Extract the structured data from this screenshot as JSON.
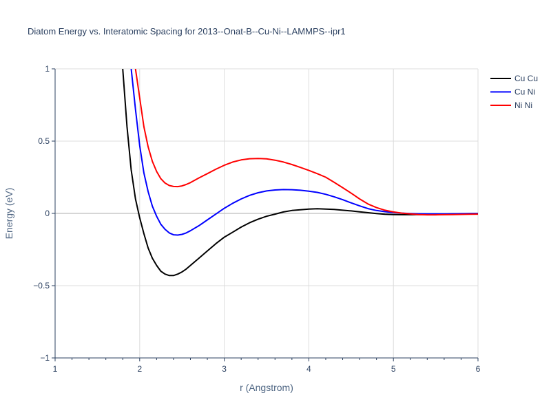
{
  "chart_data": {
    "type": "line",
    "title": "Diatom Energy vs. Interatomic Spacing for 2013--Onat-B--Cu-Ni--LAMMPS--ipr1",
    "xlabel": "r (Angstrom)",
    "ylabel": "Energy (eV)",
    "xlim": [
      1,
      6
    ],
    "ylim": [
      -1,
      1
    ],
    "xticks": [
      1,
      2,
      3,
      4,
      5,
      6
    ],
    "xtick_labels": [
      "1",
      "2",
      "3",
      "4",
      "5",
      "6"
    ],
    "yticks": [
      -1,
      -0.5,
      0,
      0.5,
      1
    ],
    "ytick_labels": [
      "−1",
      "−0.5",
      "0",
      "0.5",
      "1"
    ],
    "grid": true,
    "legend_position": "top-right",
    "series": [
      {
        "name": "Cu Cu",
        "color": "#000000",
        "x": [
          1.8,
          1.85,
          1.9,
          1.95,
          2.0,
          2.05,
          2.1,
          2.15,
          2.2,
          2.25,
          2.3,
          2.35,
          2.4,
          2.45,
          2.5,
          2.55,
          2.6,
          2.7,
          2.8,
          2.9,
          3.0,
          3.1,
          3.2,
          3.3,
          3.4,
          3.5,
          3.6,
          3.7,
          3.8,
          3.9,
          4.0,
          4.1,
          4.2,
          4.3,
          4.4,
          4.5,
          4.6,
          4.7,
          4.8,
          4.9,
          5.0,
          5.1,
          5.2,
          5.3,
          5.4,
          5.5,
          5.6,
          5.7,
          5.8,
          5.9,
          6.0
        ],
        "y": [
          1.0,
          0.6,
          0.3,
          0.1,
          -0.03,
          -0.14,
          -0.24,
          -0.31,
          -0.36,
          -0.4,
          -0.42,
          -0.43,
          -0.43,
          -0.42,
          -0.405,
          -0.385,
          -0.36,
          -0.31,
          -0.26,
          -0.21,
          -0.165,
          -0.13,
          -0.095,
          -0.065,
          -0.04,
          -0.02,
          -0.005,
          0.01,
          0.02,
          0.025,
          0.03,
          0.032,
          0.03,
          0.027,
          0.022,
          0.017,
          0.011,
          0.005,
          -0.001,
          -0.006,
          -0.008,
          -0.009,
          -0.009,
          -0.008,
          -0.007,
          -0.006,
          -0.005,
          -0.004,
          -0.003,
          -0.002,
          -0.001
        ]
      },
      {
        "name": "Cu Ni",
        "color": "#0000ff",
        "x": [
          1.9,
          1.95,
          2.0,
          2.05,
          2.1,
          2.15,
          2.2,
          2.25,
          2.3,
          2.35,
          2.4,
          2.45,
          2.5,
          2.55,
          2.6,
          2.7,
          2.8,
          2.9,
          3.0,
          3.1,
          3.2,
          3.3,
          3.4,
          3.5,
          3.6,
          3.7,
          3.8,
          3.9,
          4.0,
          4.1,
          4.2,
          4.3,
          4.4,
          4.5,
          4.6,
          4.7,
          4.8,
          4.9,
          5.0,
          5.1,
          5.2,
          5.3,
          5.4,
          5.5,
          5.6,
          5.7,
          5.8,
          5.9,
          6.0
        ],
        "y": [
          1.0,
          0.72,
          0.47,
          0.28,
          0.15,
          0.05,
          -0.02,
          -0.075,
          -0.11,
          -0.135,
          -0.148,
          -0.15,
          -0.145,
          -0.135,
          -0.12,
          -0.085,
          -0.045,
          -0.005,
          0.035,
          0.07,
          0.1,
          0.125,
          0.143,
          0.155,
          0.162,
          0.165,
          0.164,
          0.16,
          0.154,
          0.145,
          0.132,
          0.115,
          0.095,
          0.073,
          0.052,
          0.033,
          0.02,
          0.012,
          0.006,
          0.002,
          -0.001,
          -0.003,
          -0.004,
          -0.004,
          -0.004,
          -0.003,
          -0.002,
          -0.001,
          -0.001
        ]
      },
      {
        "name": "Ni Ni",
        "color": "#ff0000",
        "x": [
          1.95,
          2.0,
          2.05,
          2.1,
          2.15,
          2.2,
          2.25,
          2.3,
          2.35,
          2.4,
          2.45,
          2.5,
          2.55,
          2.6,
          2.7,
          2.8,
          2.9,
          3.0,
          3.1,
          3.2,
          3.3,
          3.4,
          3.5,
          3.6,
          3.7,
          3.8,
          3.9,
          4.0,
          4.1,
          4.2,
          4.3,
          4.4,
          4.5,
          4.6,
          4.7,
          4.8,
          4.9,
          5.0,
          5.1,
          5.2,
          5.3,
          5.4,
          5.5,
          5.6,
          5.7,
          5.8,
          5.9,
          6.0
        ],
        "y": [
          1.0,
          0.8,
          0.6,
          0.46,
          0.36,
          0.29,
          0.24,
          0.21,
          0.193,
          0.186,
          0.185,
          0.19,
          0.2,
          0.213,
          0.245,
          0.275,
          0.305,
          0.333,
          0.355,
          0.37,
          0.378,
          0.38,
          0.377,
          0.368,
          0.355,
          0.338,
          0.318,
          0.297,
          0.275,
          0.25,
          0.215,
          0.178,
          0.14,
          0.1,
          0.065,
          0.04,
          0.022,
          0.01,
          0.002,
          -0.004,
          -0.008,
          -0.01,
          -0.01,
          -0.009,
          -0.008,
          -0.007,
          -0.006,
          -0.005
        ]
      }
    ]
  }
}
